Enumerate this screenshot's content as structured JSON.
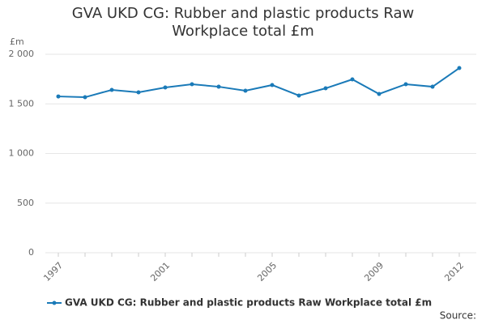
{
  "chart_data": {
    "type": "line",
    "title": "GVA UKD CG: Rubber and plastic products Raw Workplace total £m",
    "y_label": "£m",
    "source": "Source:",
    "x": [
      1997,
      1998,
      1999,
      2000,
      2001,
      2002,
      2003,
      2004,
      2005,
      2006,
      2007,
      2008,
      2009,
      2010,
      2011,
      2012
    ],
    "xlim": [
      1997,
      2012
    ],
    "xticks": [
      1997,
      2001,
      2005,
      2009,
      2012
    ],
    "series": [
      {
        "name": "GVA UKD CG: Rubber and plastic products Raw Workplace total £m",
        "color": "#1a7ab8",
        "values": [
          1575,
          1567,
          1641,
          1616,
          1665,
          1698,
          1673,
          1633,
          1690,
          1584,
          1657,
          1747,
          1600,
          1698,
          1673,
          1861
        ]
      }
    ],
    "ylim": [
      0,
      2000
    ],
    "yticks": [
      0,
      500,
      {
        "value": 1000,
        "label": "1 000"
      },
      {
        "value": 1500,
        "label": "1 500"
      },
      {
        "value": 2000,
        "label": "2 000"
      }
    ],
    "grid": true,
    "legend": "bottom"
  }
}
